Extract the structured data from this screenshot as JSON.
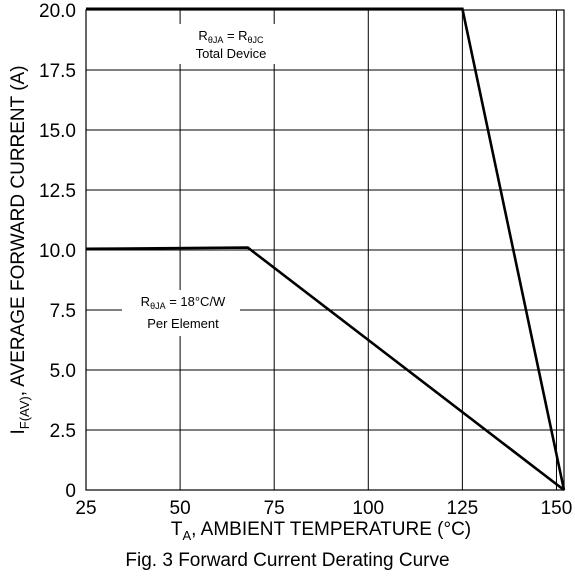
{
  "chart_data": {
    "type": "line",
    "x_ticks": [
      "25",
      "50",
      "75",
      "100",
      "125",
      "150"
    ],
    "y_ticks": [
      "0",
      "2.5",
      "5.0",
      "7.5",
      "10.0",
      "12.5",
      "15.0",
      "17.5",
      "20.0"
    ],
    "xlim": [
      25,
      152
    ],
    "ylim": [
      0,
      20
    ],
    "grid": true,
    "xlabel": {
      "main": "T",
      "sub": "A",
      "rest": ", AMBIENT TEMPERATURE (°C)"
    },
    "ylabel": {
      "main": "I",
      "sub": "F(AV)",
      "rest": ", AVERAGE FORWARD CURRENT (A)"
    },
    "caption": "Fig. 3 Forward Current Derating Curve",
    "series": [
      {
        "x": [
          25,
          125,
          152
        ],
        "y": [
          20.05,
          20.05,
          0
        ]
      },
      {
        "x": [
          25,
          68,
          152
        ],
        "y": [
          10.05,
          10.1,
          0
        ]
      }
    ],
    "annotations": [
      {
        "line1": {
          "r1": "R",
          "s1": "θJA",
          "mid": " = ",
          "r2": "R",
          "s2": "θJC"
        },
        "line2": "Total Device"
      },
      {
        "line1": {
          "r1": "R",
          "s1": "θJA",
          "mid": " = 18°C/W"
        },
        "line2": "Per Element"
      }
    ]
  }
}
